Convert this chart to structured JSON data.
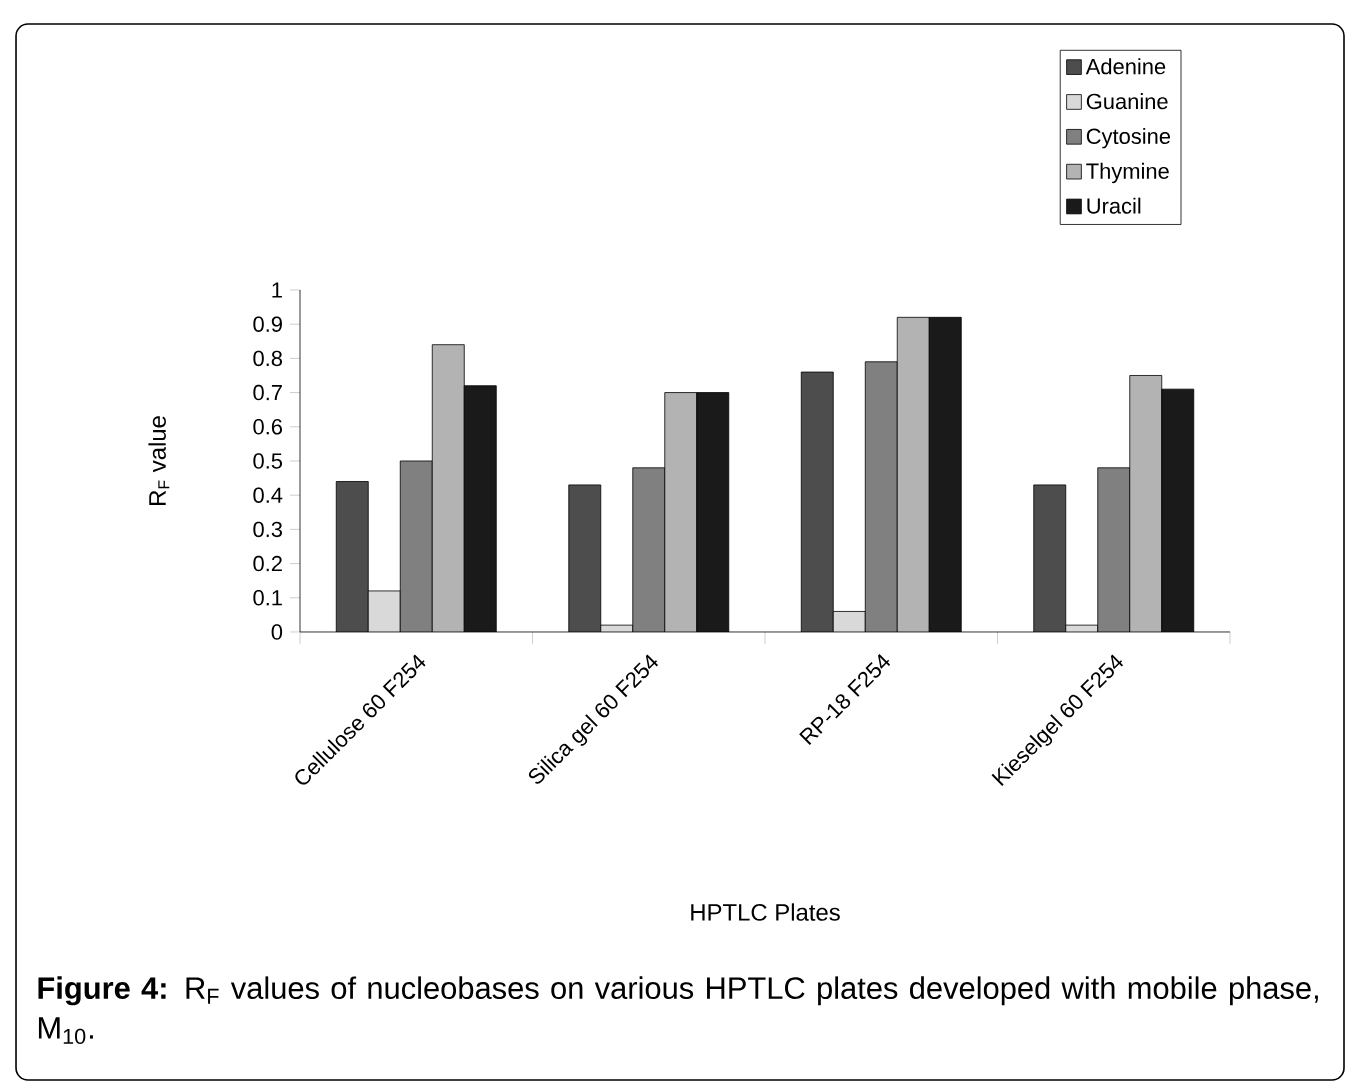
{
  "chart_data": {
    "type": "bar",
    "categories": [
      "Cellulose 60 F254",
      "Silica gel 60 F254",
      "RP-18 F254",
      "Kieselgel 60 F254"
    ],
    "xlabel": "HPTLC Plates",
    "ylabel": "R$_{F}$ value",
    "series": [
      {
        "name": "Adenine",
        "color": "#4d4d4d",
        "values": [
          0.44,
          0.43,
          0.76,
          0.43
        ]
      },
      {
        "name": "Guanine",
        "color": "#d9d9d9",
        "values": [
          0.12,
          0.02,
          0.06,
          0.02
        ]
      },
      {
        "name": "Cytosine",
        "color": "#808080",
        "values": [
          0.5,
          0.48,
          0.79,
          0.48
        ]
      },
      {
        "name": "Thymine",
        "color": "#b3b3b3",
        "values": [
          0.84,
          0.7,
          0.92,
          0.75
        ]
      },
      {
        "name": "Uracil",
        "color": "#1a1a1a",
        "values": [
          0.72,
          0.7,
          0.92,
          0.71
        ]
      }
    ],
    "ylim": [
      0,
      1
    ],
    "yticks": [
      0,
      0.1,
      0.2,
      0.3,
      0.4,
      0.5,
      0.6,
      0.7,
      0.8,
      0.9,
      1
    ],
    "legend": "top right",
    "annotations": [
      "**Figure 4:** R$_{F}$ values of nucleobases on various HPTLC plates developed with mobile phase, M$_{10}$."
    ]
  }
}
